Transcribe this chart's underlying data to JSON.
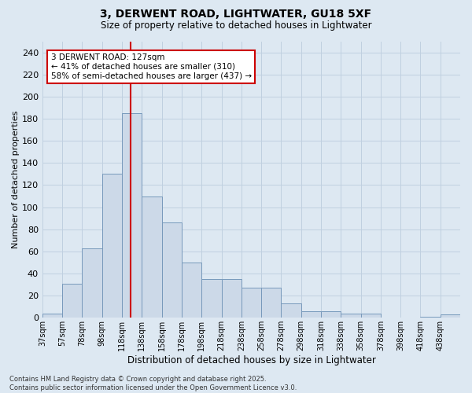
{
  "title1": "3, DERWENT ROAD, LIGHTWATER, GU18 5XF",
  "title2": "Size of property relative to detached houses in Lightwater",
  "xlabel": "Distribution of detached houses by size in Lightwater",
  "ylabel": "Number of detached properties",
  "annotation_title": "3 DERWENT ROAD: 127sqm",
  "annotation_line1": "← 41% of detached houses are smaller (310)",
  "annotation_line2": "58% of semi-detached houses are larger (437) →",
  "bin_labels": [
    "37sqm",
    "57sqm",
    "78sqm",
    "98sqm",
    "118sqm",
    "138sqm",
    "158sqm",
    "178sqm",
    "198sqm",
    "218sqm",
    "238sqm",
    "258sqm",
    "278sqm",
    "298sqm",
    "318sqm",
    "338sqm",
    "358sqm",
    "378sqm",
    "398sqm",
    "418sqm",
    "438sqm"
  ],
  "bar_heights": [
    4,
    31,
    63,
    130,
    185,
    110,
    86,
    50,
    35,
    35,
    27,
    27,
    13,
    6,
    6,
    4,
    4,
    0,
    0,
    1,
    3
  ],
  "bar_fill": "#ccd9e8",
  "bar_edge": "#7799bb",
  "vline_color": "#cc0000",
  "vline_x": 127,
  "grid_color": "#c0d0e0",
  "bg_color": "#dde8f2",
  "ylim_max": 250,
  "yticks": [
    0,
    20,
    40,
    60,
    80,
    100,
    120,
    140,
    160,
    180,
    200,
    220,
    240
  ],
  "footer1": "Contains HM Land Registry data © Crown copyright and database right 2025.",
  "footer2": "Contains public sector information licensed under the Open Government Licence v3.0."
}
